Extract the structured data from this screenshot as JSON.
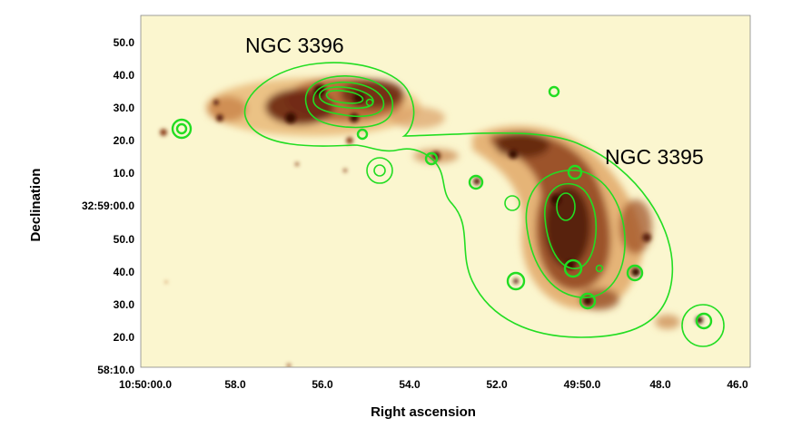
{
  "chart_data": {
    "type": "image",
    "xlabel": "Right ascension",
    "ylabel": "Declination",
    "x_ticks": [
      "10:50:00.0",
      "58.0",
      "56.0",
      "54.0",
      "52.0",
      "49:50.0",
      "48.0",
      "46.0"
    ],
    "y_ticks": [
      "50.0",
      "40.0",
      "30.0",
      "20.0",
      "10.0",
      "32:59:00.0",
      "50.0",
      "40.0",
      "30.0",
      "20.0",
      "58:10.0"
    ],
    "annotations": [
      "NGC 3396",
      "NGC 3395"
    ],
    "image_colormap": "yellow-orange-dark brown (heat)",
    "contour_color": "#22dd22",
    "background_color": "#fbf6cf"
  }
}
